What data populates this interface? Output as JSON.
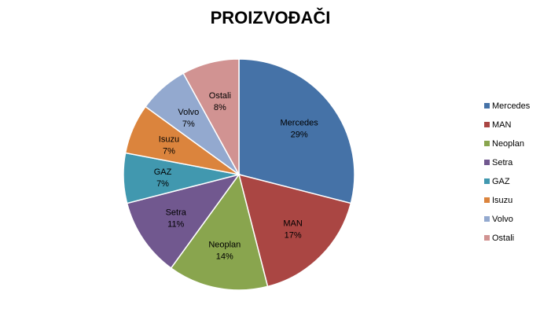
{
  "chart_data": {
    "type": "pie",
    "title": "PROIZVOĐAČI",
    "legend_position": "right",
    "slices": [
      {
        "label": "Mercedes",
        "value": 29,
        "display": "29%",
        "color": "#4572A7"
      },
      {
        "label": "MAN",
        "value": 17,
        "display": "17%",
        "color": "#AA4643"
      },
      {
        "label": "Neoplan",
        "value": 14,
        "display": "14%",
        "color": "#89A54E"
      },
      {
        "label": "Setra",
        "value": 11,
        "display": "11%",
        "color": "#71588F"
      },
      {
        "label": "GAZ",
        "value": 7,
        "display": "7%",
        "color": "#4198AF"
      },
      {
        "label": "Isuzu",
        "value": 7,
        "display": "7%",
        "color": "#DB843D"
      },
      {
        "label": "Volvo",
        "value": 7,
        "display": "7%",
        "color": "#93A9CF"
      },
      {
        "label": "Ostali",
        "value": 8,
        "display": "8%",
        "color": "#D19392"
      }
    ]
  }
}
